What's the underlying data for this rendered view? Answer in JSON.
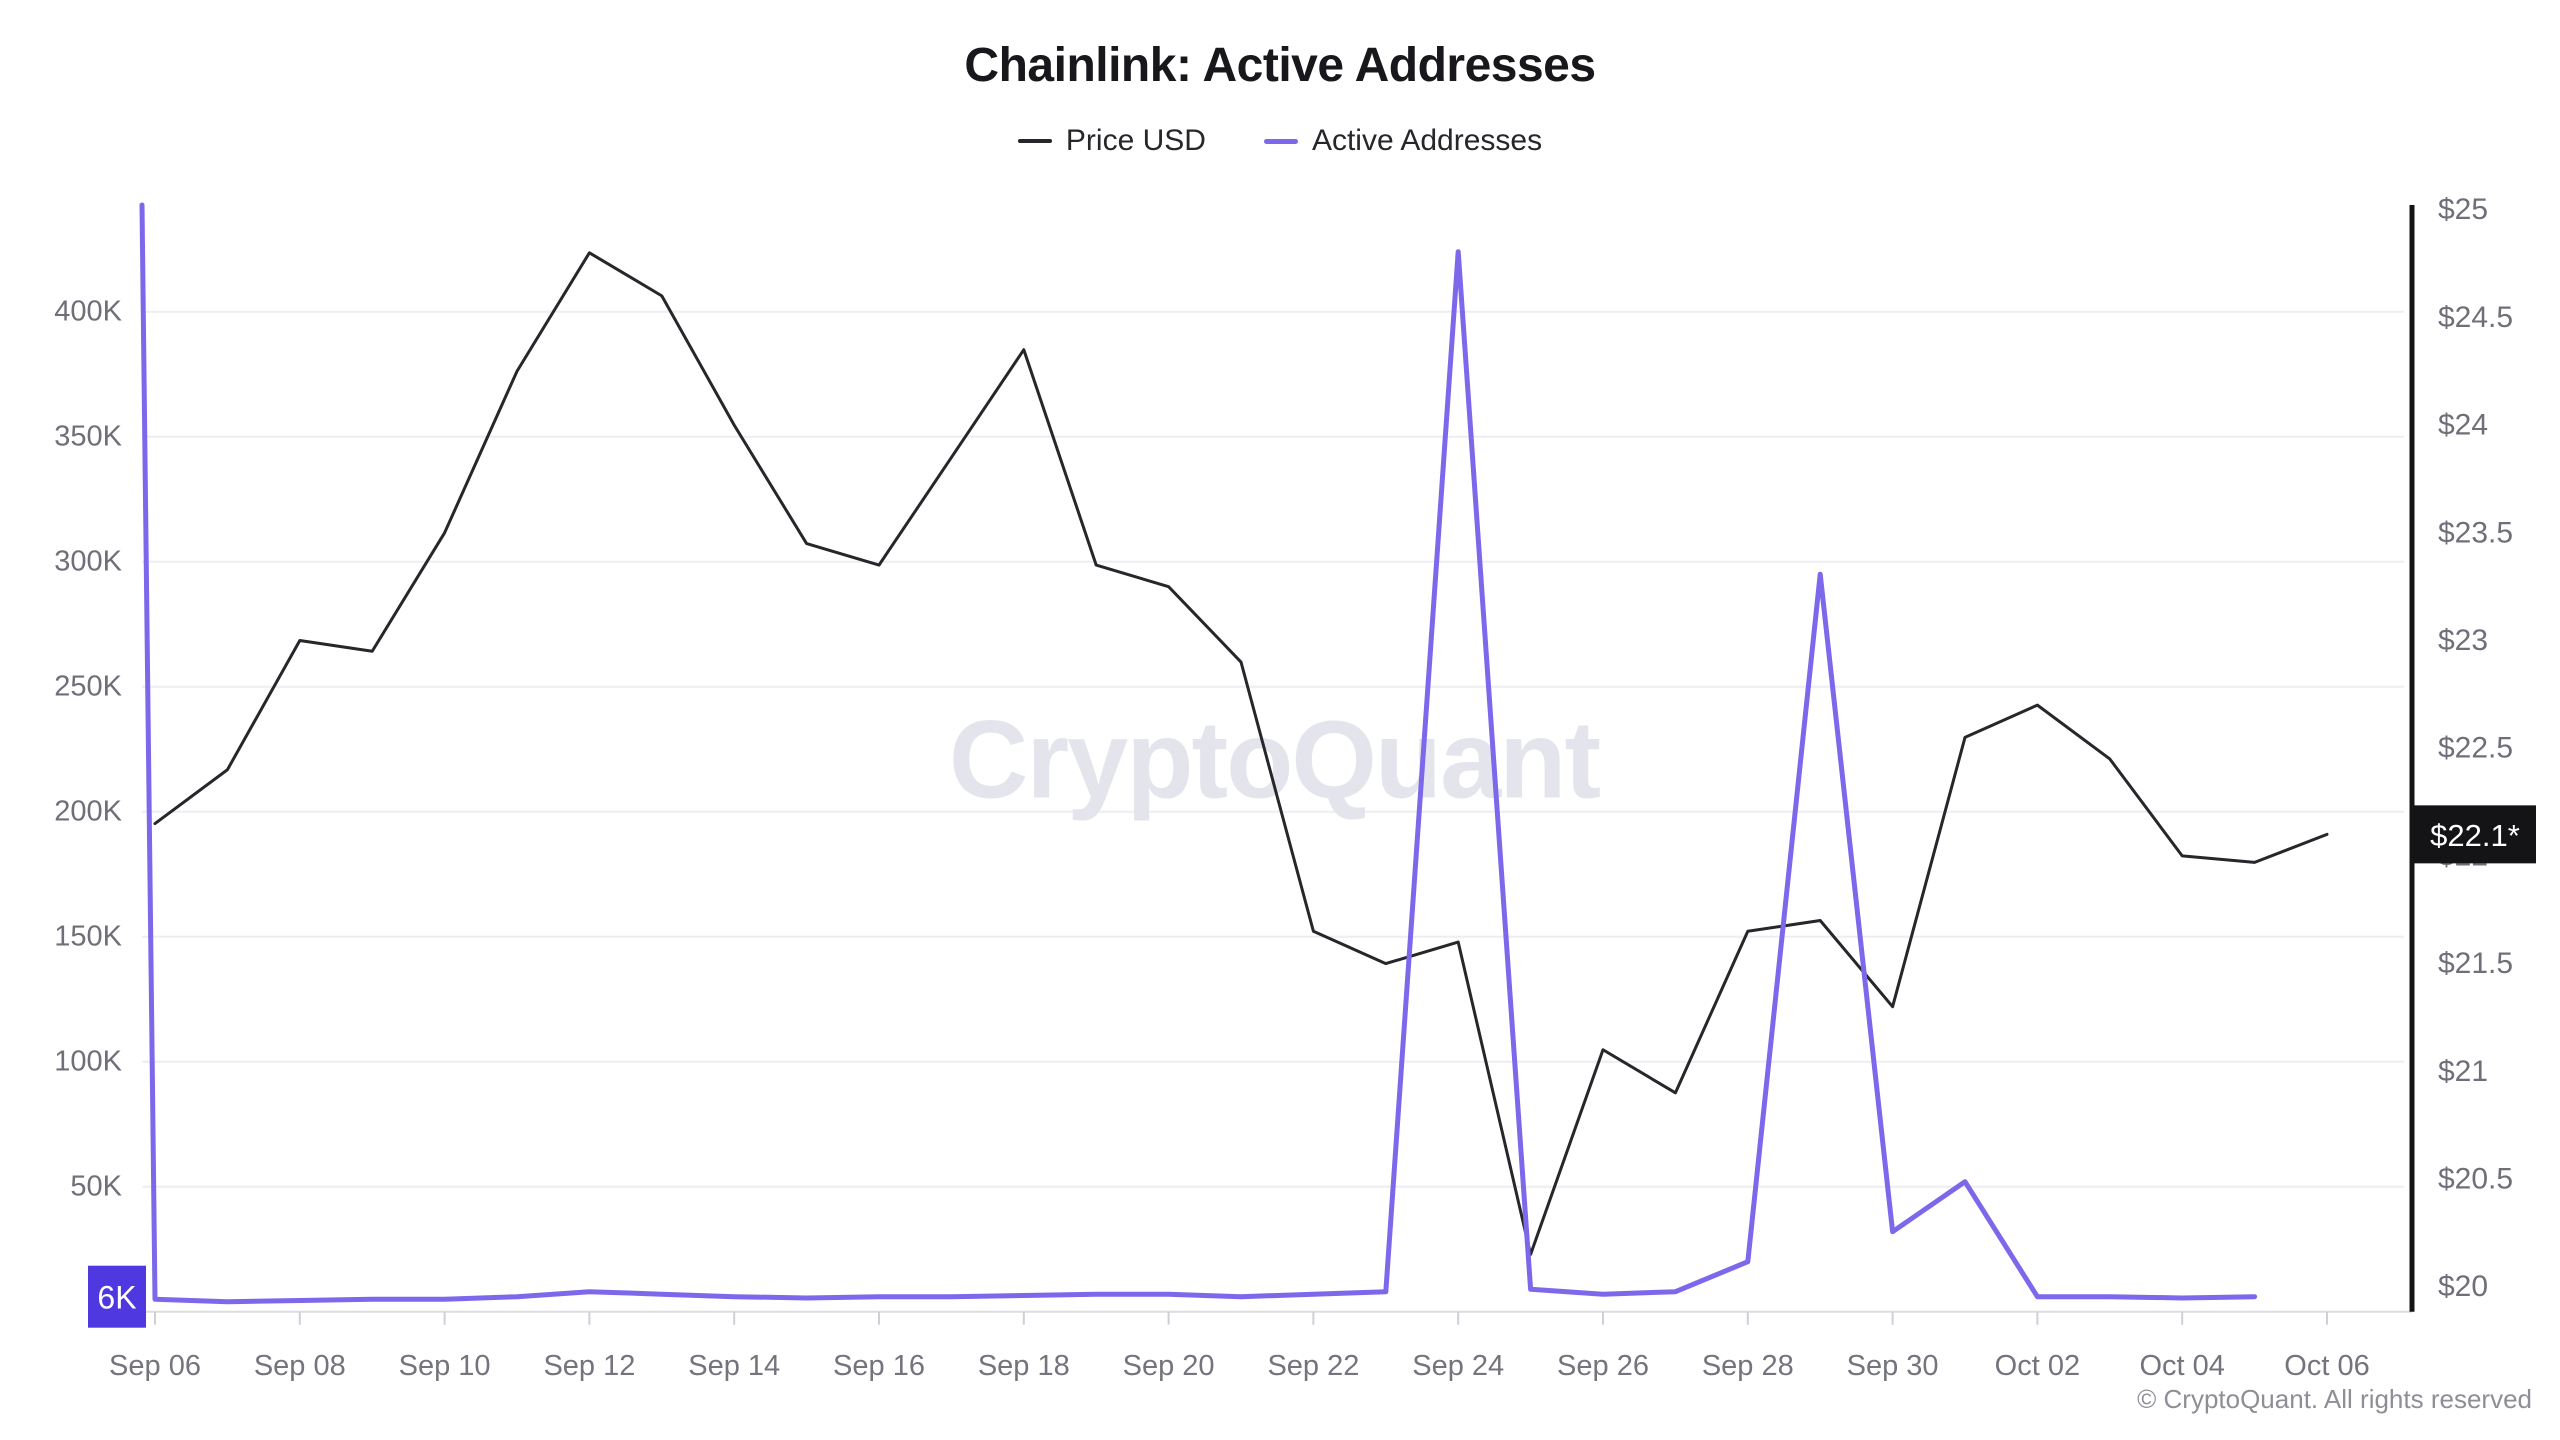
{
  "header": {
    "title": "Chainlink: Active Addresses"
  },
  "legend": {
    "items": [
      {
        "label": "Price USD",
        "color": "#26262b"
      },
      {
        "label": "Active Addresses",
        "color": "#7c68eb"
      }
    ]
  },
  "watermark": "CryptoQuant",
  "footer": {
    "copyright": "© CryptoQuant. All rights reserved"
  },
  "badges": {
    "addresses_last": {
      "label": "6K",
      "bg": "#5038e0",
      "fg": "#ffffff"
    },
    "price_last": {
      "label": "$22.1*",
      "bg": "#141417",
      "fg": "#ffffff"
    }
  },
  "chart_data": {
    "type": "line",
    "title": "Chainlink: Active Addresses",
    "grid": true,
    "legend_position": "top",
    "x_tick_labels": [
      "Sep 06",
      "Sep 08",
      "Sep 10",
      "Sep 12",
      "Sep 14",
      "Sep 16",
      "Sep 18",
      "Sep 20",
      "Sep 22",
      "Sep 24",
      "Sep 26",
      "Sep 28",
      "Sep 30",
      "Oct 02",
      "Oct 04",
      "Oct 06"
    ],
    "dates": [
      "Sep 06",
      "Sep 07",
      "Sep 08",
      "Sep 09",
      "Sep 10",
      "Sep 11",
      "Sep 12",
      "Sep 13",
      "Sep 14",
      "Sep 15",
      "Sep 16",
      "Sep 17",
      "Sep 18",
      "Sep 19",
      "Sep 20",
      "Sep 21",
      "Sep 22",
      "Sep 23",
      "Sep 24",
      "Sep 25",
      "Sep 26",
      "Sep 27",
      "Sep 28",
      "Sep 29",
      "Sep 30",
      "Oct 01",
      "Oct 02",
      "Oct 03",
      "Oct 04",
      "Oct 05",
      "Oct 06"
    ],
    "left_axis": {
      "name": "Active Addresses",
      "unit": "addresses",
      "tick_values_k": [
        50,
        100,
        150,
        200,
        250,
        300,
        350,
        400
      ],
      "tick_labels": [
        "50K",
        "100K",
        "150K",
        "200K",
        "250K",
        "300K",
        "350K",
        "400K"
      ],
      "range_k": [
        0,
        442.7
      ]
    },
    "right_axis": {
      "name": "Price USD",
      "unit": "USD",
      "tick_values": [
        20,
        20.5,
        21,
        21.5,
        22,
        22.5,
        23,
        23.5,
        24,
        24.5,
        25
      ],
      "tick_labels": [
        "$20",
        "$20.5",
        "$21",
        "$21.5",
        "$22",
        "$22.5",
        "$23",
        "$23.5",
        "$24",
        "$24.5",
        "$25"
      ],
      "range_usd": [
        19.88,
        25.02
      ]
    },
    "series": [
      {
        "name": "Price USD",
        "axis": "right",
        "color": "#26262b",
        "stroke_width": 3,
        "last_label": "$22.1*",
        "values_usd": [
          22.15,
          22.4,
          23.0,
          22.95,
          23.5,
          24.25,
          24.8,
          24.6,
          24.0,
          23.45,
          23.35,
          23.85,
          24.35,
          23.35,
          23.25,
          22.9,
          21.65,
          21.5,
          21.6,
          20.15,
          21.1,
          20.9,
          21.65,
          21.7,
          21.3,
          22.55,
          22.7,
          22.45,
          22.0,
          21.97,
          22.1
        ]
      },
      {
        "name": "Active Addresses",
        "axis": "left",
        "color": "#7c68eb",
        "stroke_width": 5,
        "last_label": "6K",
        "edge_spike_start_k": 442.7,
        "values_k": [
          5,
          4,
          4.5,
          5,
          5,
          6,
          8,
          7,
          6,
          5.5,
          6,
          6,
          6.5,
          7,
          7,
          6,
          7,
          8,
          424,
          9,
          7,
          8,
          20,
          295,
          32,
          52,
          6,
          6,
          5.5,
          6,
          null
        ]
      }
    ]
  }
}
